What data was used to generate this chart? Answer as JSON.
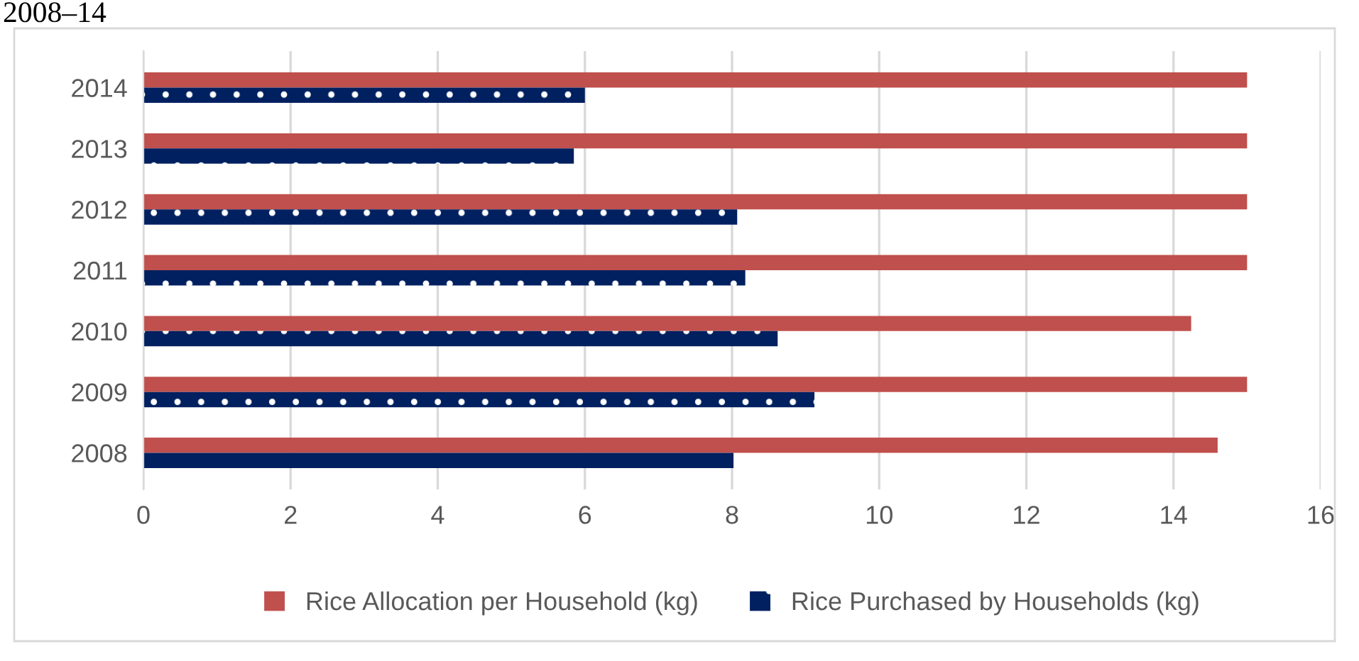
{
  "chart_data": {
    "type": "bar",
    "orientation": "horizontal",
    "title": "2008–14",
    "categories": [
      "2014",
      "2013",
      "2012",
      "2011",
      "2010",
      "2009",
      "2008"
    ],
    "series": [
      {
        "name": "Rice Allocation per Household (kg)",
        "color": "#c0504d",
        "values": [
          15,
          15,
          15,
          15,
          14.24,
          15,
          14.6
        ]
      },
      {
        "name": "Rice Purchased by Households (kg)",
        "color": "#002060",
        "values": [
          6.0,
          5.85,
          8.07,
          8.18,
          8.62,
          9.12,
          8.02
        ]
      }
    ],
    "xlim": [
      0,
      16
    ],
    "xticks": [
      0,
      2,
      4,
      6,
      8,
      10,
      12,
      14,
      16
    ],
    "grid": "x",
    "legend": "bottom"
  }
}
